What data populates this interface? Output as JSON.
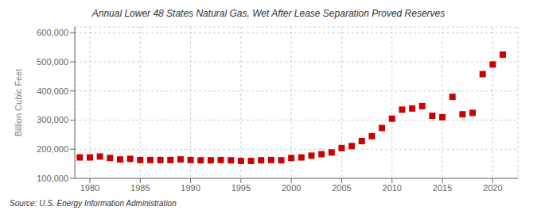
{
  "chart_data": {
    "type": "scatter",
    "title": "Annual Lower 48 States Natural Gas, Wet After Lease Separation Proved Reserves",
    "ylabel": "Billion Cubic Feet",
    "source": "Source: U.S. Energy Information Administration",
    "x": [
      1979,
      1980,
      1981,
      1982,
      1983,
      1984,
      1985,
      1986,
      1987,
      1988,
      1989,
      1990,
      1991,
      1992,
      1993,
      1994,
      1995,
      1996,
      1997,
      1998,
      1999,
      2000,
      2001,
      2002,
      2003,
      2004,
      2005,
      2006,
      2007,
      2008,
      2009,
      2010,
      2011,
      2012,
      2013,
      2014,
      2015,
      2016,
      2017,
      2018,
      2019,
      2020,
      2021
    ],
    "values": [
      172000,
      172000,
      175000,
      170000,
      165000,
      167000,
      163000,
      163000,
      163000,
      163000,
      165000,
      163000,
      162000,
      162000,
      163000,
      162000,
      160000,
      160000,
      162000,
      163000,
      162000,
      170000,
      172000,
      178000,
      183000,
      189000,
      204000,
      211000,
      228000,
      245000,
      273000,
      305000,
      336000,
      340000,
      348000,
      315000,
      310000,
      380000,
      320000,
      325000,
      458000,
      491000,
      525000
    ],
    "color": "#cc0000",
    "marker": "square",
    "xlim": [
      1978.5,
      2022.5
    ],
    "xticks": [
      1980,
      1985,
      1990,
      1995,
      2000,
      2005,
      2010,
      2015,
      2020
    ],
    "ylim": [
      100000,
      620000
    ],
    "yticks": [
      {
        "value": 100000,
        "label": "100,000"
      },
      {
        "value": 200000,
        "label": "200,000"
      },
      {
        "value": 300000,
        "label": "300,000"
      },
      {
        "value": 400000,
        "label": "400,000"
      },
      {
        "value": 500000,
        "label": "500,000"
      },
      {
        "value": 600000,
        "label": "600,000"
      }
    ],
    "grid": true
  }
}
